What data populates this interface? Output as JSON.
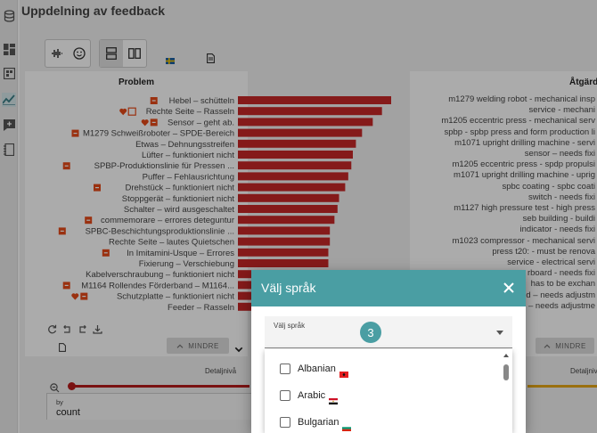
{
  "panel": {
    "title": "Uppdelning av feedback"
  },
  "colors": {
    "bar": "#c62828",
    "teal": "#4a9ea3",
    "slider": "#b71c1c",
    "slider_right": "#e6a817",
    "icon_red": "#e64a19"
  },
  "sidebar": {
    "icons": [
      "database-icon",
      "dashboard-icon",
      "pivot-icon",
      "trend-icon",
      "add-comment-icon",
      "notebook-icon"
    ]
  },
  "chart_left": {
    "title": "Problem",
    "mindre_label": "MINDRE",
    "detail_label": "Detaljnivå",
    "by_label": "by",
    "count_label": "count"
  },
  "chart_right": {
    "title": "Åtgärd",
    "mindre_label": "MINDRE",
    "detail_label": "Detaljnivå",
    "labels": [
      "m1279 welding robot - mechanical insp",
      "service - mechani",
      "m1205 eccentric press - mechanical serv",
      "spbp - spbp press and form production li",
      "m1071 upright drilling machine - servi",
      "sensor – needs fixi",
      "m1205 eccentric press - spdp propulsi",
      "m1071 upright drilling machine - uprig",
      "spbc coating - spbc coati",
      "switch - needs fixi",
      "m1127 high pressure test - high press",
      "seb building - buildi",
      "indicator - needs fixi",
      "m1023 compressor - mechanical servi",
      "press t20: - must be renova",
      "service - electrical servi",
      "rboard - needs fixi",
      "has to be exchan",
      "ed – needs adjustm",
      "ing – needs adjustme"
    ]
  },
  "chart_data": {
    "type": "bar",
    "orientation": "horizontal",
    "title": "Problem",
    "categories": [
      "Hebel – schütteln",
      "Rechte Seite – Rasseln",
      "Sensor – geht ab.",
      "M1279 Schweißroboter – SPDE-Bereich",
      "Etwas – Dehnungsstreifen",
      "Lüfter – funktioniert nicht",
      "SPBP-Produktionslinie für Pressen ...",
      "Puffer – Fehlausrichtung",
      "Drehstück – funktioniert nicht",
      "Stoppgerät – funktioniert nicht",
      "Schalter – wird ausgeschaltet",
      "commemorare – errores deteguntur",
      "SPBC-Beschichtungsproduktionslinie ...",
      "Rechte Seite – lautes Quietschen",
      "In Imitamini-Usque – Errores",
      "Fixierung – Verschiebung",
      "Kabelverschraubung – funktioniert nicht",
      "M1164 Rollendes Förderband – M1164...",
      "Schutzplatte – funktioniert nicht",
      "Feeder – Rasseln"
    ],
    "values": [
      100,
      94,
      88,
      81,
      77,
      75,
      74,
      72,
      70,
      66,
      65,
      63,
      60,
      60,
      59,
      59,
      58,
      57,
      56,
      55
    ],
    "icons": [
      "sq",
      "heart-calendar",
      "heart-sq",
      "sq",
      "",
      "",
      "sq",
      "",
      "sq",
      "",
      "",
      "sq",
      "sq",
      "",
      "sq",
      "",
      "",
      "sq",
      "heart-sq",
      ""
    ],
    "xlim": [
      0,
      100
    ]
  },
  "dialog": {
    "title": "Välj språk",
    "select_label": "Välj språk",
    "step_badge": "3",
    "options": [
      {
        "label": "Albanian",
        "flag": "albania-flag",
        "checked": false
      },
      {
        "label": "Arabic",
        "flag": "egypt-flag",
        "checked": false
      },
      {
        "label": "Bulgarian",
        "flag": "bulgaria-flag",
        "checked": false
      }
    ]
  }
}
